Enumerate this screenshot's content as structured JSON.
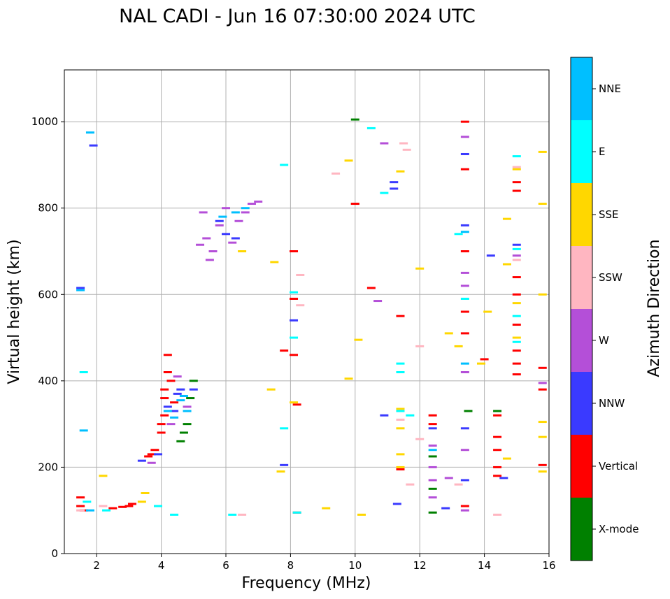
{
  "chart_data": {
    "type": "scatter",
    "title": "NAL CADI - Jun 16 07:30:00 2024 UTC",
    "xlabel": "Frequency (MHz)",
    "ylabel": "Virtual height (km)",
    "xlim": [
      1,
      16
    ],
    "ylim": [
      0,
      1120
    ],
    "grid": true,
    "xticks": [
      2,
      4,
      6,
      8,
      10,
      12,
      14,
      16
    ],
    "yticks": [
      0,
      200,
      400,
      600,
      800,
      1000
    ],
    "colorbar": {
      "label": "Azimuth Direction",
      "categories": [
        {
          "name": "X-mode",
          "color": "#008000"
        },
        {
          "name": "Vertical",
          "color": "#ff0000"
        },
        {
          "name": "NNW",
          "color": "#3a3aff"
        },
        {
          "name": "W",
          "color": "#b44fd8"
        },
        {
          "name": "SSW",
          "color": "#ffb6c1"
        },
        {
          "name": "SSE",
          "color": "#ffd700"
        },
        {
          "name": "E",
          "color": "#00ffff"
        },
        {
          "name": "NNE",
          "color": "#00bfff"
        }
      ]
    },
    "series": [
      {
        "name": "X-mode",
        "points": [
          [
            12.4,
            95
          ],
          [
            12.4,
            150
          ],
          [
            12.4,
            225
          ],
          [
            14.4,
            330
          ],
          [
            4.6,
            260
          ],
          [
            4.7,
            280
          ],
          [
            4.8,
            300
          ],
          [
            4.9,
            360
          ],
          [
            10.0,
            1005
          ],
          [
            10.0,
            810
          ],
          [
            5.0,
            400
          ],
          [
            13.5,
            330
          ]
        ]
      },
      {
        "name": "Vertical",
        "points": [
          [
            1.5,
            130
          ],
          [
            1.5,
            110
          ],
          [
            1.6,
            100
          ],
          [
            2.5,
            105
          ],
          [
            2.8,
            108
          ],
          [
            3.0,
            110
          ],
          [
            3.1,
            115
          ],
          [
            3.6,
            225
          ],
          [
            3.7,
            230
          ],
          [
            3.8,
            240
          ],
          [
            4.0,
            280
          ],
          [
            4.0,
            300
          ],
          [
            4.1,
            320
          ],
          [
            4.1,
            360
          ],
          [
            4.1,
            380
          ],
          [
            4.2,
            420
          ],
          [
            4.2,
            460
          ],
          [
            4.3,
            400
          ],
          [
            4.4,
            350
          ],
          [
            7.8,
            470
          ],
          [
            8.1,
            700
          ],
          [
            8.1,
            590
          ],
          [
            8.1,
            460
          ],
          [
            8.2,
            345
          ],
          [
            10.0,
            810
          ],
          [
            10.5,
            615
          ],
          [
            11.4,
            195
          ],
          [
            11.4,
            550
          ],
          [
            12.4,
            320
          ],
          [
            12.4,
            300
          ],
          [
            13.4,
            1000
          ],
          [
            13.4,
            890
          ],
          [
            13.4,
            700
          ],
          [
            13.4,
            560
          ],
          [
            13.4,
            510
          ],
          [
            13.4,
            110
          ],
          [
            14.0,
            450
          ],
          [
            14.4,
            320
          ],
          [
            14.4,
            270
          ],
          [
            14.4,
            240
          ],
          [
            14.4,
            200
          ],
          [
            14.4,
            180
          ],
          [
            15.0,
            860
          ],
          [
            15.0,
            840
          ],
          [
            15.0,
            640
          ],
          [
            15.0,
            600
          ],
          [
            15.0,
            530
          ],
          [
            15.0,
            470
          ],
          [
            15.0,
            440
          ],
          [
            15.0,
            415
          ],
          [
            15.8,
            430
          ],
          [
            15.8,
            380
          ],
          [
            15.8,
            205
          ],
          [
            8.2,
            95
          ]
        ]
      },
      {
        "name": "NNW",
        "points": [
          [
            1.5,
            615
          ],
          [
            1.9,
            945
          ],
          [
            3.4,
            215
          ],
          [
            3.9,
            230
          ],
          [
            4.2,
            340
          ],
          [
            4.4,
            330
          ],
          [
            4.5,
            370
          ],
          [
            4.6,
            380
          ],
          [
            5.0,
            380
          ],
          [
            5.8,
            770
          ],
          [
            6.0,
            740
          ],
          [
            6.3,
            730
          ],
          [
            8.1,
            540
          ],
          [
            10.9,
            320
          ],
          [
            11.2,
            860
          ],
          [
            11.2,
            845
          ],
          [
            11.3,
            115
          ],
          [
            12.4,
            290
          ],
          [
            12.8,
            105
          ],
          [
            13.4,
            925
          ],
          [
            13.4,
            760
          ],
          [
            13.4,
            290
          ],
          [
            13.4,
            170
          ],
          [
            14.2,
            690
          ],
          [
            14.6,
            175
          ],
          [
            15.0,
            715
          ],
          [
            7.8,
            205
          ]
        ]
      },
      {
        "name": "W",
        "points": [
          [
            5.3,
            790
          ],
          [
            5.4,
            730
          ],
          [
            5.6,
            700
          ],
          [
            5.8,
            760
          ],
          [
            6.0,
            800
          ],
          [
            6.2,
            720
          ],
          [
            6.4,
            770
          ],
          [
            6.6,
            790
          ],
          [
            6.8,
            810
          ],
          [
            7.0,
            815
          ],
          [
            5.5,
            680
          ],
          [
            5.2,
            715
          ],
          [
            3.7,
            210
          ],
          [
            4.3,
            300
          ],
          [
            4.5,
            410
          ],
          [
            4.8,
            340
          ],
          [
            10.7,
            585
          ],
          [
            10.9,
            950
          ],
          [
            12.4,
            250
          ],
          [
            12.4,
            200
          ],
          [
            12.4,
            170
          ],
          [
            12.4,
            130
          ],
          [
            13.4,
            965
          ],
          [
            13.4,
            650
          ],
          [
            13.4,
            620
          ],
          [
            13.4,
            420
          ],
          [
            13.4,
            240
          ],
          [
            13.4,
            100
          ],
          [
            15.0,
            690
          ],
          [
            15.8,
            395
          ],
          [
            12.9,
            175
          ]
        ]
      },
      {
        "name": "SSW",
        "points": [
          [
            1.5,
            100
          ],
          [
            2.2,
            110
          ],
          [
            9.4,
            880
          ],
          [
            8.3,
            645
          ],
          [
            8.3,
            575
          ],
          [
            11.5,
            950
          ],
          [
            11.6,
            935
          ],
          [
            11.7,
            160
          ],
          [
            12.0,
            265
          ],
          [
            12.0,
            480
          ],
          [
            13.2,
            160
          ],
          [
            14.4,
            90
          ],
          [
            15.0,
            895
          ],
          [
            15.0,
            680
          ],
          [
            11.4,
            310
          ],
          [
            6.5,
            90
          ]
        ]
      },
      {
        "name": "SSE",
        "points": [
          [
            2.2,
            180
          ],
          [
            3.5,
            140
          ],
          [
            3.4,
            120
          ],
          [
            6.5,
            700
          ],
          [
            7.5,
            675
          ],
          [
            7.7,
            190
          ],
          [
            8.1,
            350
          ],
          [
            9.1,
            105
          ],
          [
            9.8,
            405
          ],
          [
            9.8,
            910
          ],
          [
            10.1,
            495
          ],
          [
            10.2,
            90
          ],
          [
            11.4,
            230
          ],
          [
            11.4,
            200
          ],
          [
            11.4,
            885
          ],
          [
            11.4,
            335
          ],
          [
            11.4,
            290
          ],
          [
            12.0,
            660
          ],
          [
            12.9,
            510
          ],
          [
            13.2,
            480
          ],
          [
            13.9,
            440
          ],
          [
            14.1,
            560
          ],
          [
            14.7,
            775
          ],
          [
            14.7,
            670
          ],
          [
            14.7,
            220
          ],
          [
            15.0,
            890
          ],
          [
            15.0,
            580
          ],
          [
            15.0,
            500
          ],
          [
            15.8,
            930
          ],
          [
            15.8,
            810
          ],
          [
            15.8,
            600
          ],
          [
            15.8,
            305
          ],
          [
            15.8,
            270
          ],
          [
            15.8,
            190
          ],
          [
            7.4,
            380
          ]
        ]
      },
      {
        "name": "E",
        "points": [
          [
            1.6,
            420
          ],
          [
            1.7,
            120
          ],
          [
            2.3,
            100
          ],
          [
            3.9,
            110
          ],
          [
            4.4,
            90
          ],
          [
            6.2,
            90
          ],
          [
            7.8,
            900
          ],
          [
            7.8,
            290
          ],
          [
            8.1,
            605
          ],
          [
            8.1,
            500
          ],
          [
            10.5,
            985
          ],
          [
            10.9,
            835
          ],
          [
            11.4,
            440
          ],
          [
            11.4,
            420
          ],
          [
            11.4,
            330
          ],
          [
            11.7,
            320
          ],
          [
            13.2,
            740
          ],
          [
            13.4,
            590
          ],
          [
            15.0,
            920
          ],
          [
            15.0,
            705
          ],
          [
            15.0,
            550
          ],
          [
            15.0,
            490
          ],
          [
            8.2,
            95
          ]
        ]
      },
      {
        "name": "NNE",
        "points": [
          [
            1.5,
            610
          ],
          [
            1.8,
            975
          ],
          [
            1.6,
            285
          ],
          [
            4.2,
            330
          ],
          [
            4.4,
            315
          ],
          [
            4.6,
            355
          ],
          [
            4.7,
            365
          ],
          [
            4.8,
            330
          ],
          [
            5.9,
            780
          ],
          [
            6.3,
            790
          ],
          [
            6.6,
            800
          ],
          [
            1.8,
            100
          ],
          [
            12.4,
            240
          ],
          [
            13.4,
            745
          ],
          [
            13.4,
            440
          ]
        ]
      }
    ]
  }
}
